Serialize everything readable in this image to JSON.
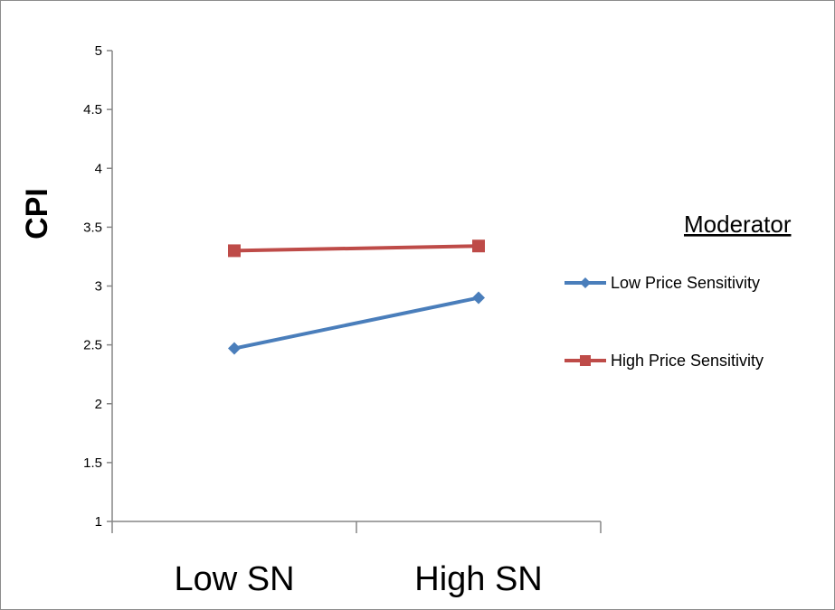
{
  "chart_data": {
    "type": "line",
    "title": "",
    "xlabel": "",
    "ylabel": "CPI",
    "categories": [
      "Low SN",
      "High SN"
    ],
    "ylim": [
      1,
      5
    ],
    "yticks": [
      "1",
      "1.5",
      "2",
      "2.5",
      "3",
      "3.5",
      "4",
      "4.5",
      "5"
    ],
    "grid": false,
    "legend": {
      "title": "Moderator",
      "position": "right"
    },
    "series": [
      {
        "name": "Low Price Sensitivity",
        "values": [
          2.47,
          2.9
        ],
        "color": "#4a7ebb",
        "marker": "diamond"
      },
      {
        "name": "High Price Sensitivity",
        "values": [
          3.3,
          3.34
        ],
        "color": "#be4b48",
        "marker": "square"
      }
    ]
  }
}
